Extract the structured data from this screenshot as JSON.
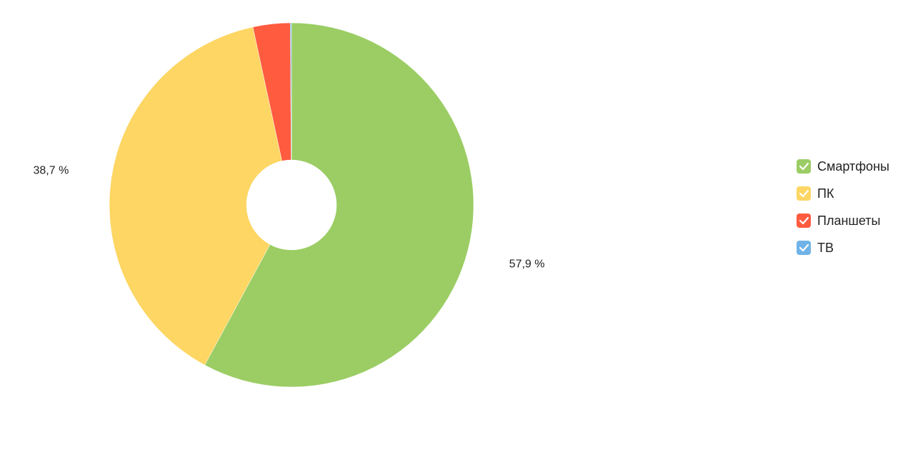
{
  "chart_data": {
    "type": "donut",
    "categories": [
      "Смартфоны",
      "ПК",
      "Планшеты",
      "ТВ"
    ],
    "values": [
      57.9,
      38.7,
      3.3,
      0.1
    ],
    "value_labels": [
      "57,9 %",
      "38,7 %",
      null,
      null
    ],
    "colors": [
      "#9bcd64",
      "#fdd663",
      "#ff5b3f",
      "#6fb3e8"
    ],
    "legend": "right"
  }
}
